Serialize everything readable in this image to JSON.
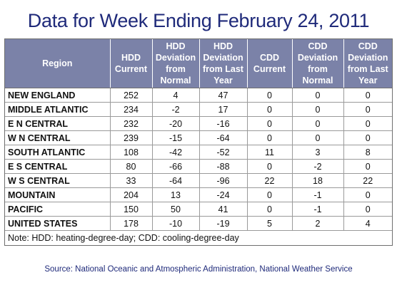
{
  "title": "Data for Week Ending February 24, 2011",
  "columns": [
    {
      "l1": "Region",
      "l2": "",
      "l3": "",
      "l4": ""
    },
    {
      "l1": "HDD",
      "l2": "Current",
      "l3": "",
      "l4": ""
    },
    {
      "l1": "HDD",
      "l2": "Deviation",
      "l3": "from",
      "l4": "Normal"
    },
    {
      "l1": "HDD",
      "l2": "Deviation",
      "l3": "from Last",
      "l4": "Year"
    },
    {
      "l1": "CDD",
      "l2": "Current",
      "l3": "",
      "l4": ""
    },
    {
      "l1": "CDD",
      "l2": "Deviation",
      "l3": "from",
      "l4": "Normal"
    },
    {
      "l1": "CDD",
      "l2": "Deviation",
      "l3": "from Last",
      "l4": "Year"
    }
  ],
  "rows": [
    {
      "region": "NEW ENGLAND",
      "hdd_current": "252",
      "hdd_dev_normal": "4",
      "hdd_dev_last_year": "47",
      "cdd_current": "0",
      "cdd_dev_normal": "0",
      "cdd_dev_last_year": "0"
    },
    {
      "region": "MIDDLE ATLANTIC",
      "hdd_current": "234",
      "hdd_dev_normal": "-2",
      "hdd_dev_last_year": "17",
      "cdd_current": "0",
      "cdd_dev_normal": "0",
      "cdd_dev_last_year": "0"
    },
    {
      "region": "E N CENTRAL",
      "hdd_current": "232",
      "hdd_dev_normal": "-20",
      "hdd_dev_last_year": "-16",
      "cdd_current": "0",
      "cdd_dev_normal": "0",
      "cdd_dev_last_year": "0"
    },
    {
      "region": "W N CENTRAL",
      "hdd_current": "239",
      "hdd_dev_normal": "-15",
      "hdd_dev_last_year": "-64",
      "cdd_current": "0",
      "cdd_dev_normal": "0",
      "cdd_dev_last_year": "0"
    },
    {
      "region": "SOUTH ATLANTIC",
      "hdd_current": "108",
      "hdd_dev_normal": "-42",
      "hdd_dev_last_year": "-52",
      "cdd_current": "11",
      "cdd_dev_normal": "3",
      "cdd_dev_last_year": "8"
    },
    {
      "region": "E S CENTRAL",
      "hdd_current": "80",
      "hdd_dev_normal": "-66",
      "hdd_dev_last_year": "-88",
      "cdd_current": "0",
      "cdd_dev_normal": "-2",
      "cdd_dev_last_year": "0"
    },
    {
      "region": "W S CENTRAL",
      "hdd_current": "33",
      "hdd_dev_normal": "-64",
      "hdd_dev_last_year": "-96",
      "cdd_current": "22",
      "cdd_dev_normal": "18",
      "cdd_dev_last_year": "22"
    },
    {
      "region": "MOUNTAIN",
      "hdd_current": "204",
      "hdd_dev_normal": "13",
      "hdd_dev_last_year": "-24",
      "cdd_current": "0",
      "cdd_dev_normal": "-1",
      "cdd_dev_last_year": "0"
    },
    {
      "region": "PACIFIC",
      "hdd_current": "150",
      "hdd_dev_normal": "50",
      "hdd_dev_last_year": "41",
      "cdd_current": "0",
      "cdd_dev_normal": "-1",
      "cdd_dev_last_year": "0"
    },
    {
      "region": "UNITED STATES",
      "hdd_current": "178",
      "hdd_dev_normal": "-10",
      "hdd_dev_last_year": "-19",
      "cdd_current": "5",
      "cdd_dev_normal": "2",
      "cdd_dev_last_year": "4"
    }
  ],
  "note": "Note: HDD: heating-degree-day; CDD: cooling-degree-day",
  "source": "Source:  National Oceanic and Atmospheric Administration, National Weather Service",
  "colors": {
    "title": "#1f2a7a",
    "header_bg": "#7b82a8",
    "header_text": "#ffffff",
    "source_text": "#1f2a7a"
  }
}
